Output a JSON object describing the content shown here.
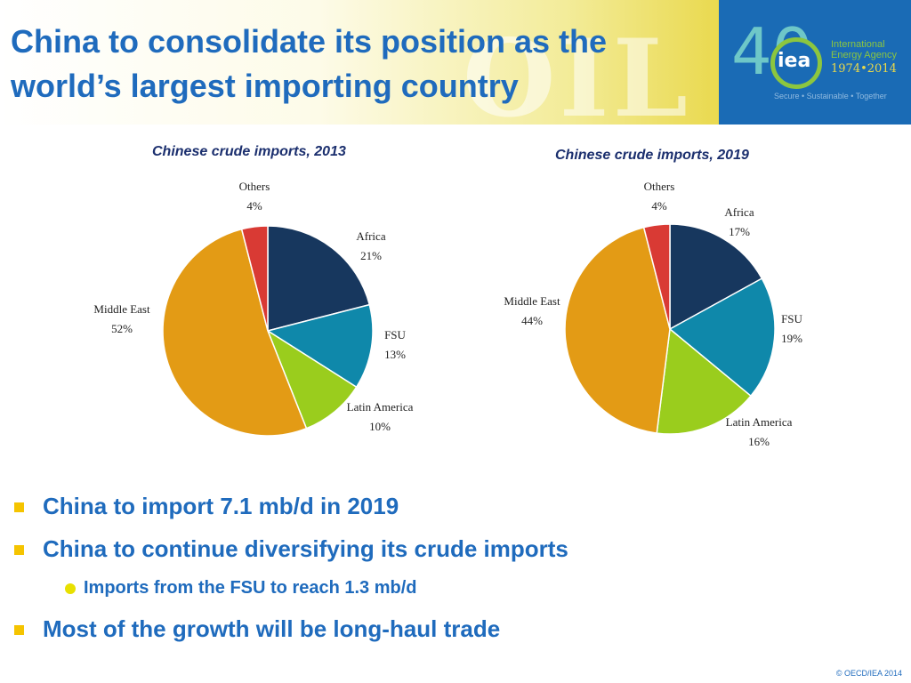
{
  "slide": {
    "title_line1": "China to consolidate its position as the",
    "title_line2": "world’s largest importing country",
    "background_word": "OIL",
    "logo": {
      "number": "40",
      "abbr": "iea",
      "name_line1": "International",
      "name_line2": "Energy Agency",
      "years": "1974•2014",
      "tagline": "Secure • Sustainable • Together"
    },
    "bullets": [
      {
        "text": "China to import 7.1 mb/d in 2019",
        "level": 1
      },
      {
        "text": "China to continue diversifying its crude imports",
        "level": 1
      },
      {
        "text": "Imports from the FSU to reach 1.3 mb/d",
        "level": 2
      },
      {
        "text": "Most of the growth will be long-haul trade",
        "level": 1
      }
    ],
    "footer": "© OECD/IEA 2014"
  },
  "colors": {
    "title": "#1f6bbd",
    "bullet_square": "#f5c400",
    "bullet_dot": "#e8e000",
    "logo_bg": "#1a6bb5"
  },
  "chart_data": [
    {
      "type": "pie",
      "title": "Chinese crude imports, 2013",
      "series": [
        {
          "name": "Africa",
          "value": 21,
          "label": "21%",
          "color": "#17375e"
        },
        {
          "name": "FSU",
          "value": 13,
          "label": "13%",
          "color": "#0f88aa"
        },
        {
          "name": "Latin America",
          "value": 10,
          "label": "10%",
          "color": "#9acd1d"
        },
        {
          "name": "Middle East",
          "value": 52,
          "label": "52%",
          "color": "#e39b15"
        },
        {
          "name": "Others",
          "value": 4,
          "label": "4%",
          "color": "#d93a34"
        }
      ]
    },
    {
      "type": "pie",
      "title": "Chinese crude imports, 2019",
      "series": [
        {
          "name": "Africa",
          "value": 17,
          "label": "17%",
          "color": "#17375e"
        },
        {
          "name": "FSU",
          "value": 19,
          "label": "19%",
          "color": "#0f88aa"
        },
        {
          "name": "Latin America",
          "value": 16,
          "label": "16%",
          "color": "#9acd1d"
        },
        {
          "name": "Middle East",
          "value": 44,
          "label": "44%",
          "color": "#e39b15"
        },
        {
          "name": "Others",
          "value": 4,
          "label": "4%",
          "color": "#d93a34"
        }
      ]
    }
  ]
}
